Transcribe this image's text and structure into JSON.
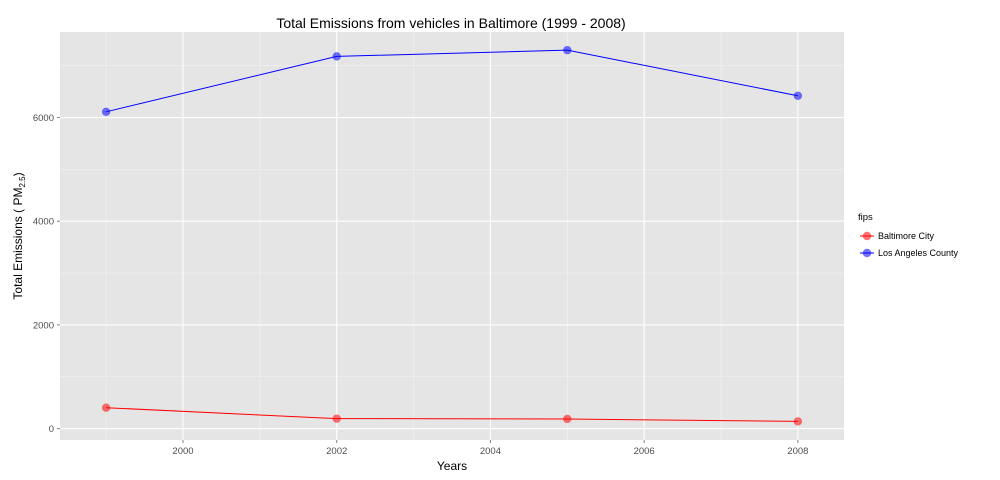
{
  "chart_data": {
    "type": "line",
    "title": "Total Emissions from vehicles in Baltimore (1999 - 2008)",
    "xlabel": "Years",
    "ylabel": {
      "prefix": "Total Emissions ( PM",
      "subscript": "2.5",
      "suffix": ")"
    },
    "xlim": [
      1998.4,
      2008.6
    ],
    "ylim": [
      -220,
      7650
    ],
    "x_ticks": [
      2000,
      2002,
      2004,
      2006,
      2008
    ],
    "y_ticks": [
      0,
      2000,
      4000,
      6000
    ],
    "grid": true,
    "legend": {
      "title": "fips",
      "position": "right"
    },
    "series": [
      {
        "name": "Baltimore City",
        "color": "#ff0000",
        "x": [
          1999,
          2002,
          2005,
          2008
        ],
        "y": [
          403,
          192,
          186,
          139
        ]
      },
      {
        "name": "Los Angeles County",
        "color": "#0000ff",
        "x": [
          1999,
          2002,
          2005,
          2008
        ],
        "y": [
          6110,
          7180,
          7300,
          6420
        ]
      }
    ]
  }
}
